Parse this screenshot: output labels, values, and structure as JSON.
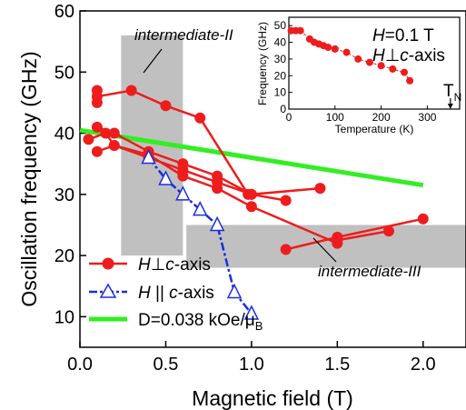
{
  "chart_data": [
    {
      "type": "line",
      "xlabel": "Magnetic field (T)",
      "ylabel": "Oscillation frequency (GHz)",
      "xlim": [
        0,
        2.25
      ],
      "ylim": [
        5,
        60
      ],
      "xticks": [
        0.0,
        0.5,
        1.0,
        1.5,
        2.0
      ],
      "xtick_labels": [
        "0.0",
        "0.5",
        "1.0",
        "1.5",
        "2.0"
      ],
      "yticks": [
        10,
        20,
        30,
        40,
        50,
        60
      ],
      "ytick_labels": [
        "10",
        "20",
        "30",
        "40",
        "50",
        "60"
      ],
      "shaded_regions": [
        {
          "label": "intermediate-II",
          "x": [
            0.24,
            0.6
          ],
          "y": [
            20,
            56
          ]
        },
        {
          "label": "intermediate-III",
          "x": [
            0.62,
            2.25
          ],
          "y": [
            18,
            25
          ]
        }
      ],
      "annotations": [
        "intermediate-II",
        "intermediate-III"
      ],
      "series": [
        {
          "name_parts": [
            "H",
            "⊥",
            "c",
            "-axis"
          ],
          "color": "#ee1c1c",
          "marker": "filled-circle",
          "branches": [
            {
              "x": [
                0.1,
                0.3,
                0.5,
                0.7,
                0.98
              ],
              "y": [
                46,
                47,
                44.5,
                42.5,
                30
              ]
            },
            {
              "x": [
                0.1,
                0.1
              ],
              "y": [
                45,
                47
              ]
            },
            {
              "x": [
                0.1,
                0.2,
                0.4,
                0.6,
                0.8,
                1.0,
                1.2
              ],
              "y": [
                41,
                40,
                37,
                35,
                33,
                30,
                29
              ]
            },
            {
              "x": [
                0.05,
                0.15,
                0.2,
                0.4,
                0.6,
                0.8,
                1.0,
                1.4
              ],
              "y": [
                39,
                40,
                38,
                36,
                34,
                32,
                30,
                31
              ]
            },
            {
              "x": [
                0.1,
                0.2,
                0.4,
                0.6,
                0.8,
                1.0,
                1.5
              ],
              "y": [
                37,
                38,
                36.5,
                33,
                31,
                28,
                22
              ]
            },
            {
              "x": [
                1.2,
                1.5,
                2.0
              ],
              "y": [
                21,
                23,
                26
              ]
            },
            {
              "x": [
                1.5,
                1.8
              ],
              "y": [
                22.5,
                24
              ]
            }
          ]
        },
        {
          "name_parts": [
            "H",
            " || ",
            "c",
            "-axis"
          ],
          "color": "#1a2de0",
          "marker": "open-triangle",
          "x": [
            0.4,
            0.5,
            0.6,
            0.7,
            0.8,
            0.9,
            1.0
          ],
          "y": [
            36,
            32.5,
            30,
            27.5,
            25,
            14,
            10.5
          ]
        },
        {
          "name_parts": [
            "D=0.038 kOe/μ",
            "B"
          ],
          "color": "#33ee22",
          "marker": "none",
          "x": [
            0.0,
            2.0
          ],
          "y": [
            40.5,
            31.5
          ]
        }
      ]
    },
    {
      "type": "scatter",
      "position": "inset",
      "xlabel": "Temperature (K)",
      "ylabel": "Frequency (GHz)",
      "xlim": [
        0,
        370
      ],
      "ylim": [
        0,
        55
      ],
      "xticks": [
        0,
        100,
        200,
        300
      ],
      "xtick_labels": [
        "0",
        "100",
        "200",
        "300"
      ],
      "yticks": [
        0,
        10,
        20,
        30,
        40,
        50
      ],
      "ytick_labels": [
        "0",
        "10",
        "20",
        "30",
        "40",
        "50"
      ],
      "field_label_parts": [
        "H",
        "=0.1 T"
      ],
      "orientation_label_parts": [
        "H",
        "⊥",
        "c",
        "-axis"
      ],
      "tn_label_parts": [
        "T",
        "N"
      ],
      "tn_x": 350,
      "color": "#ee1c1c",
      "series": [
        {
          "x": [
            5,
            15,
            25,
            45,
            55,
            65,
            75,
            85,
            100,
            125,
            150,
            175,
            200,
            225,
            250,
            262
          ],
          "y": [
            47,
            47,
            47,
            42,
            40,
            39,
            38,
            37,
            36,
            34,
            30,
            28,
            26,
            24,
            22,
            17
          ]
        }
      ]
    }
  ]
}
